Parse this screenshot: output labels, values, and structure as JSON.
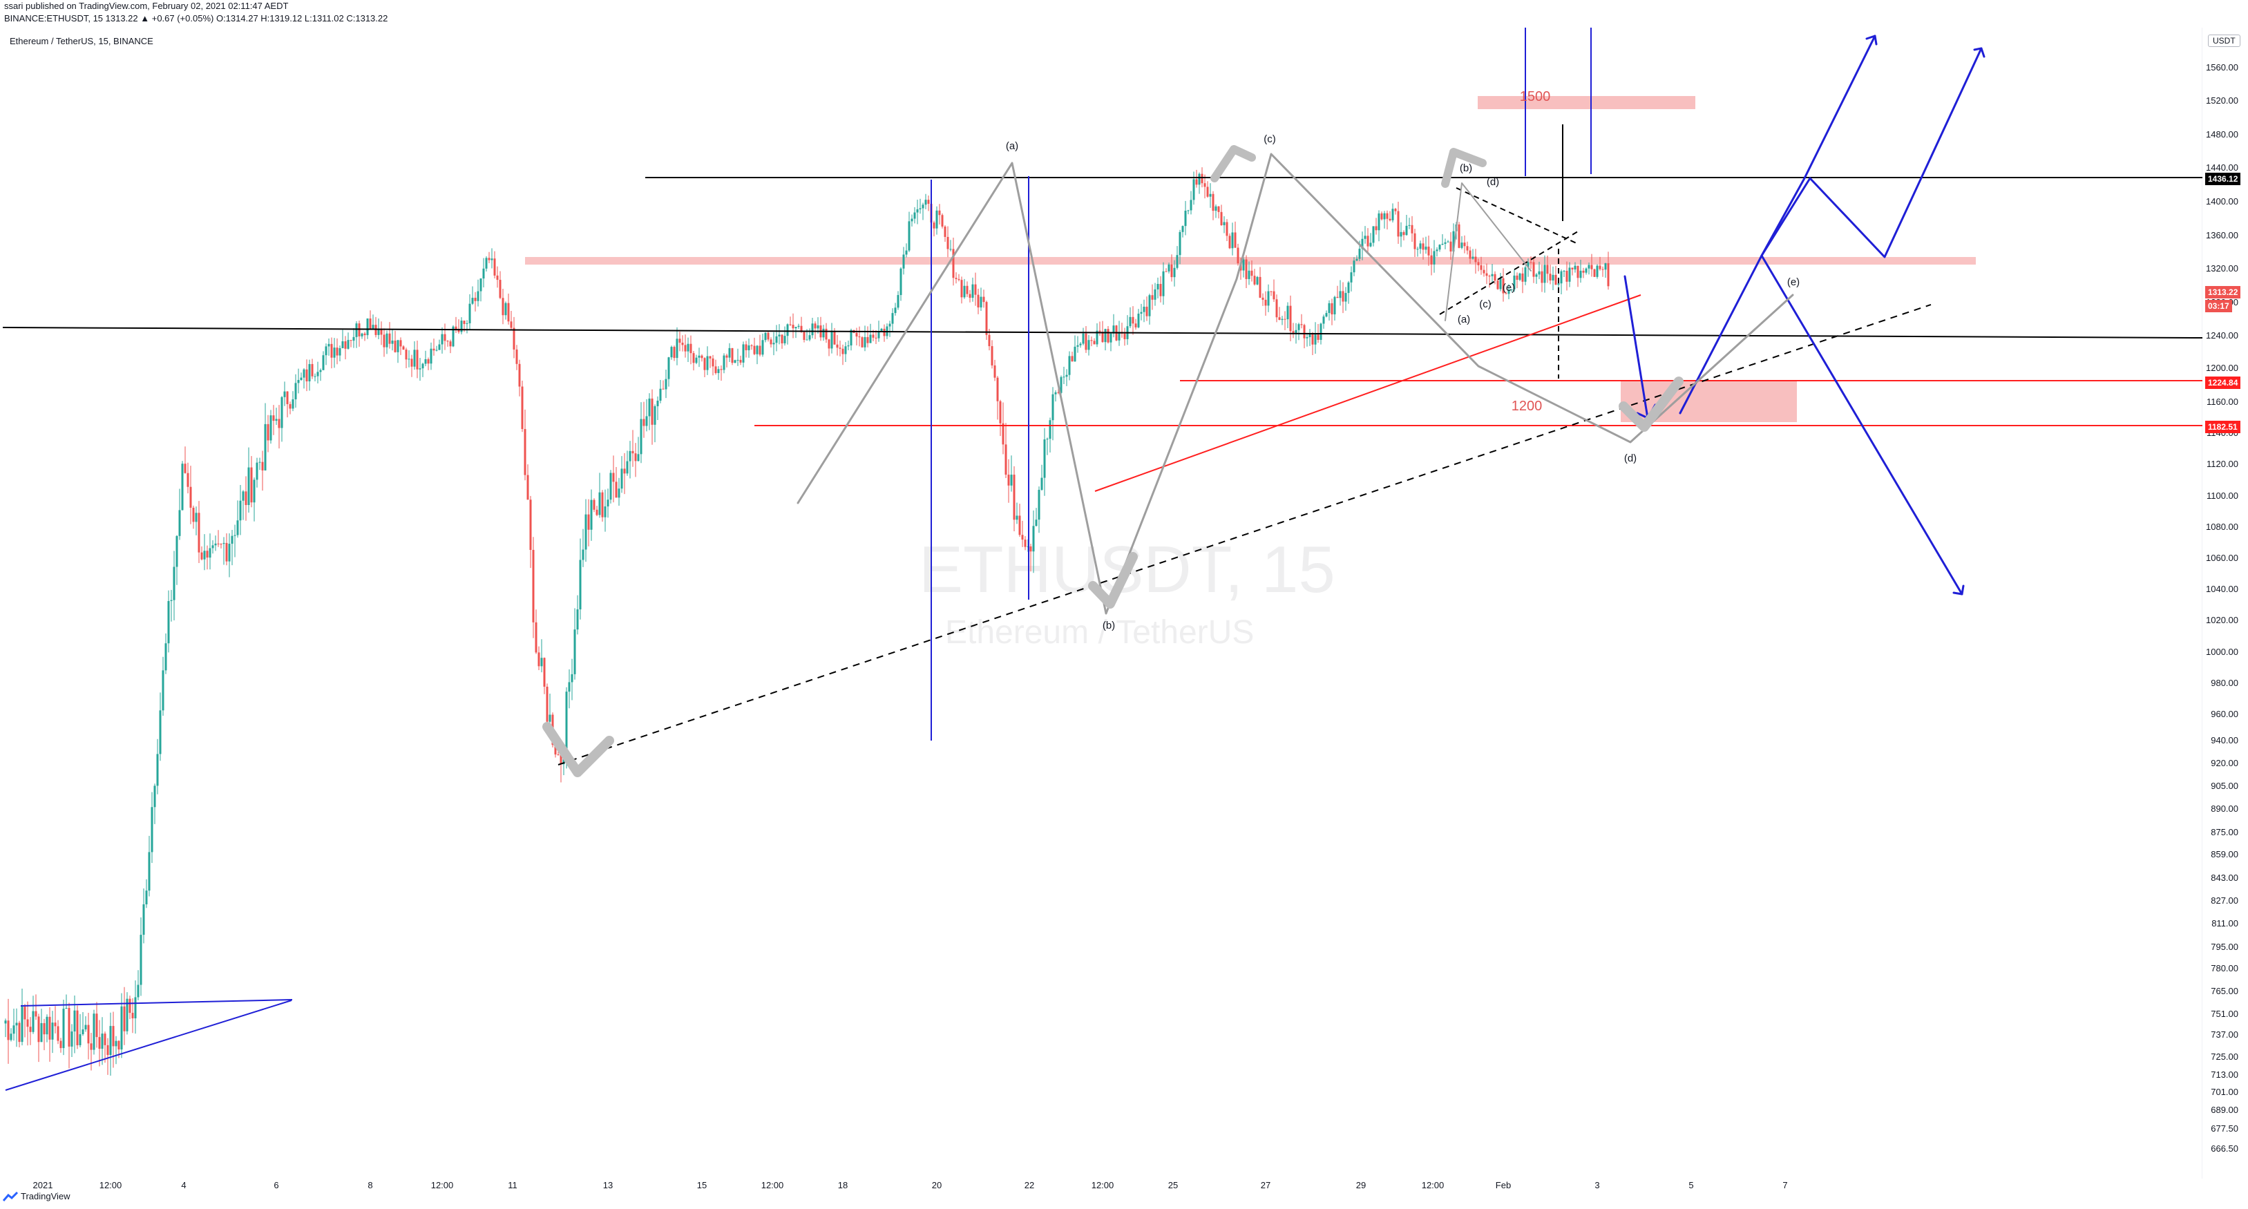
{
  "header": {
    "publisher_line": "ssari published on TradingView.com, February 02, 2021 02:11:47 AEDT",
    "symbol_line": "BINANCE:ETHUSDT, 15  1313.22 ▲ +0.67 (+0.05%) O:1314.27 H:1319.12 L:1311.02 C:1313.22"
  },
  "chart_title": "Ethereum / TetherUS, 15, BINANCE",
  "watermark": {
    "symbol": "ETHUSDT, 15",
    "name": "Ethereum / TetherUS"
  },
  "currency_button": "USDT",
  "footer": {
    "brand": "TradingView"
  },
  "colors": {
    "up": "#26a69a",
    "down": "#ef5350",
    "wave": "#9e9e9e",
    "blue": "#1f1fd6",
    "red": "#ff1f1f",
    "zone": "#f7b4b4",
    "black": "#000000"
  },
  "price_axis_ticks": [
    "1560.00",
    "1520.00",
    "1480.00",
    "1440.00",
    "1400.00",
    "1360.00",
    "1320.00",
    "1280.00",
    "1240.00",
    "1200.00",
    "1160.00",
    "1140.00",
    "1120.00",
    "1100.00",
    "1080.00",
    "1060.00",
    "1040.00",
    "1020.00",
    "1000.00",
    "980.00",
    "960.00",
    "940.00",
    "920.00",
    "905.00",
    "890.00",
    "875.00",
    "859.00",
    "843.00",
    "827.00",
    "811.00",
    "795.00",
    "780.00",
    "765.00",
    "751.00",
    "737.00",
    "725.00",
    "713.00",
    "701.00",
    "689.00",
    "677.50",
    "666.50"
  ],
  "price_badges": [
    {
      "label": "1436.12",
      "color": "#000000"
    },
    {
      "label": "1313.22",
      "color": "#ef5350"
    },
    {
      "label": "03:17",
      "color": "#ef5350"
    },
    {
      "label": "1224.84",
      "color": "#ff1f1f"
    },
    {
      "label": "1182.51",
      "color": "#ff1f1f"
    }
  ],
  "time_axis_ticks": [
    "2021",
    "12:00",
    "4",
    "6",
    "8",
    "12:00",
    "11",
    "13",
    "15",
    "12:00",
    "18",
    "20",
    "22",
    "12:00",
    "25",
    "27",
    "29",
    "12:00",
    "Feb",
    "3",
    "5",
    "7"
  ],
  "annotations": {
    "wave_labels": [
      "(a)",
      "(b)",
      "(c)",
      "(d)",
      "(e)",
      "(b)",
      "(d)",
      "(c)",
      "(e)",
      "(a)"
    ],
    "level_1500": "1500",
    "level_1200": "1200"
  },
  "chart_data": {
    "type": "candlestick",
    "title": "Ethereum / TetherUS, 15, BINANCE",
    "symbol": "ETHUSDT",
    "interval": "15",
    "ylim": [
      666.5,
      1580
    ],
    "last_price": 1313.22,
    "key_levels": [
      1436.12,
      1224.84,
      1182.51
    ],
    "close_path": [
      {
        "x": "2021-01-01 00:00",
        "y": 745
      },
      {
        "x": "2021-01-02 12:00",
        "y": 735
      },
      {
        "x": "2021-01-03 00:00",
        "y": 760
      },
      {
        "x": "2021-01-03 12:00",
        "y": 965
      },
      {
        "x": "2021-01-04 00:00",
        "y": 1120
      },
      {
        "x": "2021-01-04 12:00",
        "y": 1050
      },
      {
        "x": "2021-01-05 00:00",
        "y": 1075
      },
      {
        "x": "2021-01-06 00:00",
        "y": 1150
      },
      {
        "x": "2021-01-07 00:00",
        "y": 1215
      },
      {
        "x": "2021-01-08 00:00",
        "y": 1260
      },
      {
        "x": "2021-01-08 12:00",
        "y": 1225
      },
      {
        "x": "2021-01-09 00:00",
        "y": 1210
      },
      {
        "x": "2021-01-10 00:00",
        "y": 1250
      },
      {
        "x": "2021-01-10 12:00",
        "y": 1330
      },
      {
        "x": "2021-01-11 00:00",
        "y": 1240
      },
      {
        "x": "2021-01-11 12:00",
        "y": 1000
      },
      {
        "x": "2021-01-12 00:00",
        "y": 920
      },
      {
        "x": "2021-01-12 12:00",
        "y": 1080
      },
      {
        "x": "2021-01-13 00:00",
        "y": 1100
      },
      {
        "x": "2021-01-14 00:00",
        "y": 1160
      },
      {
        "x": "2021-01-14 12:00",
        "y": 1240
      },
      {
        "x": "2021-01-15 00:00",
        "y": 1200
      },
      {
        "x": "2021-01-16 00:00",
        "y": 1220
      },
      {
        "x": "2021-01-17 00:00",
        "y": 1250
      },
      {
        "x": "2021-01-18 00:00",
        "y": 1230
      },
      {
        "x": "2021-01-19 00:00",
        "y": 1250
      },
      {
        "x": "2021-01-19 12:00",
        "y": 1400
      },
      {
        "x": "2021-01-20 00:00",
        "y": 1380
      },
      {
        "x": "2021-01-20 12:00",
        "y": 1300
      },
      {
        "x": "2021-01-21 00:00",
        "y": 1280
      },
      {
        "x": "2021-01-21 12:00",
        "y": 1110
      },
      {
        "x": "2021-01-22 00:00",
        "y": 1070
      },
      {
        "x": "2021-01-22 12:00",
        "y": 1160
      },
      {
        "x": "2021-01-23 00:00",
        "y": 1230
      },
      {
        "x": "2021-01-24 00:00",
        "y": 1250
      },
      {
        "x": "2021-01-24 12:00",
        "y": 1280
      },
      {
        "x": "2021-01-25 00:00",
        "y": 1320
      },
      {
        "x": "2021-01-25 12:00",
        "y": 1430
      },
      {
        "x": "2021-01-26 00:00",
        "y": 1390
      },
      {
        "x": "2021-01-26 12:00",
        "y": 1320
      },
      {
        "x": "2021-01-27 00:00",
        "y": 1290
      },
      {
        "x": "2021-01-27 12:00",
        "y": 1260
      },
      {
        "x": "2021-01-28 00:00",
        "y": 1240
      },
      {
        "x": "2021-01-28 12:00",
        "y": 1280
      },
      {
        "x": "2021-01-29 00:00",
        "y": 1340
      },
      {
        "x": "2021-01-29 12:00",
        "y": 1390
      },
      {
        "x": "2021-01-30 00:00",
        "y": 1360
      },
      {
        "x": "2021-01-30 12:00",
        "y": 1330
      },
      {
        "x": "2021-01-31 00:00",
        "y": 1360
      },
      {
        "x": "2021-01-31 12:00",
        "y": 1330
      },
      {
        "x": "2021-02-01 00:00",
        "y": 1300
      },
      {
        "x": "2021-02-01 12:00",
        "y": 1320
      },
      {
        "x": "2021-02-01 15:00",
        "y": 1313.22
      }
    ]
  }
}
